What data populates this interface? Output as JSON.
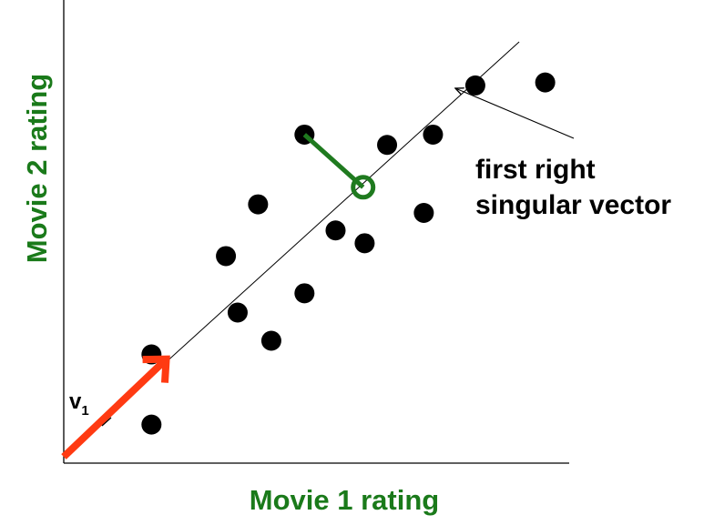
{
  "labels": {
    "x_axis": "Movie 1 rating",
    "y_axis": "Movie 2 rating",
    "annotation_line1": "first right",
    "annotation_line2": "singular vector",
    "vector_name": "v",
    "vector_subscript": "1"
  },
  "colors": {
    "axis_label": "#1a7a1a",
    "points": "#000000",
    "vector_arrow": "#ff3a12",
    "projection": "#1f7a1f",
    "line": "#000000"
  },
  "chart_data": {
    "type": "scatter",
    "title": "",
    "xlabel": "Movie 1 rating",
    "ylabel": "Movie 2 rating",
    "xlim": [
      0,
      100
    ],
    "ylim": [
      0,
      100
    ],
    "grid": false,
    "points": [
      {
        "x": 17.2,
        "y": 7.1
      },
      {
        "x": 17.2,
        "y": 23.5
      },
      {
        "x": 31.8,
        "y": 46.5
      },
      {
        "x": 34.1,
        "y": 33.3
      },
      {
        "x": 38.1,
        "y": 58.6
      },
      {
        "x": 40.7,
        "y": 26.7
      },
      {
        "x": 47.2,
        "y": 37.8
      },
      {
        "x": 47.2,
        "y": 74.9
      },
      {
        "x": 53.3,
        "y": 52.5
      },
      {
        "x": 59.0,
        "y": 49.5
      },
      {
        "x": 63.4,
        "y": 72.5
      },
      {
        "x": 70.6,
        "y": 56.6
      },
      {
        "x": 72.4,
        "y": 74.9
      },
      {
        "x": 80.7,
        "y": 86.4
      },
      {
        "x": 94.4,
        "y": 87.1
      }
    ],
    "singular_vector_line": {
      "x": [
        0,
        89.3
      ],
      "y": [
        0,
        96.6
      ]
    },
    "vector_v1": {
      "from": [
        0,
        0
      ],
      "to": [
        20.1,
        22.4
      ]
    },
    "projection": {
      "point": {
        "x": 47.2,
        "y": 74.9
      },
      "foot": {
        "x": 58.7,
        "y": 62.6
      }
    }
  }
}
